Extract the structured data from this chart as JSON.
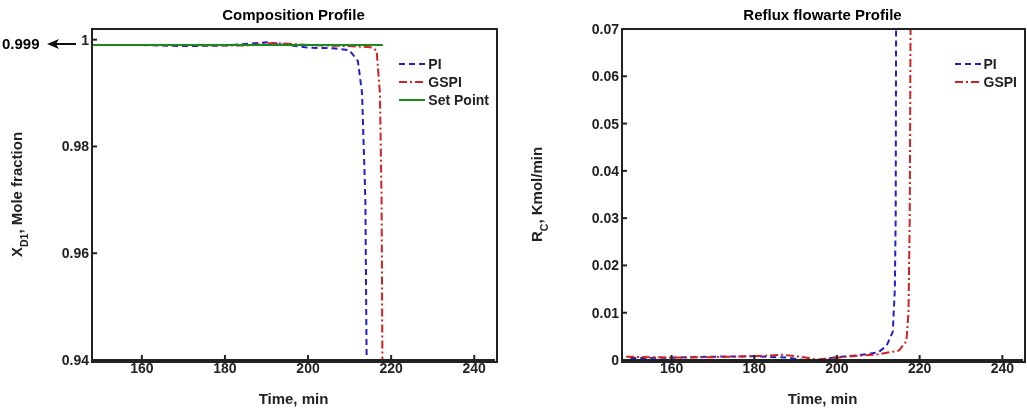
{
  "chart_data": [
    {
      "type": "line",
      "title": "Composition Profile",
      "xlabel": "Time, min",
      "ylabel": "X$_{D1}$, Mole fraction",
      "xlim": [
        148,
        245
      ],
      "xticks": [
        160,
        180,
        200,
        220,
        240
      ],
      "ylim": [
        0.94,
        1.002
      ],
      "yticks": [
        0.94,
        0.96,
        0.98,
        1
      ],
      "grid": false,
      "legend": "top right",
      "marker": "none",
      "annotations": [
        "0.999"
      ],
      "series": [
        {
          "name": "PI",
          "color": "#2020c8",
          "line_style": "dashed",
          "x": [
            148,
            160,
            170,
            180,
            190,
            195,
            200,
            206,
            210,
            212,
            213,
            213.8,
            214.1
          ],
          "values": [
            0.999,
            0.999,
            0.9988,
            0.9989,
            0.9995,
            0.999,
            0.9985,
            0.9984,
            0.998,
            0.996,
            0.99,
            0.97,
            0.94
          ]
        },
        {
          "name": "GSPI",
          "color": "#d42020",
          "line_style": "dashdot",
          "x": [
            148,
            170,
            185,
            192,
            200,
            210,
            215,
            216.5,
            217.3,
            217.7,
            217.9
          ],
          "values": [
            0.999,
            0.999,
            0.9989,
            0.9994,
            0.999,
            0.9988,
            0.9986,
            0.998,
            0.99,
            0.97,
            0.94
          ]
        },
        {
          "name": "Set Point",
          "color": "#1a8a1a",
          "line_style": "solid",
          "x": [
            148,
            218
          ],
          "values": [
            0.999,
            0.999
          ]
        }
      ]
    },
    {
      "type": "line",
      "title": "Reflux flowarte Profile",
      "xlabel": "Time, min",
      "ylabel": "R$_{C}$, Kmol/min",
      "xlim": [
        148,
        245
      ],
      "xticks": [
        160,
        180,
        200,
        220,
        240
      ],
      "ylim": [
        0,
        0.07
      ],
      "yticks": [
        0,
        0.01,
        0.02,
        0.03,
        0.04,
        0.05,
        0.06,
        0.07
      ],
      "grid": false,
      "legend": "top right",
      "marker": "none",
      "series": [
        {
          "name": "PI",
          "color": "#2020c8",
          "line_style": "dashed",
          "x": [
            150,
            160,
            170,
            180,
            188,
            192,
            195,
            200,
            205,
            210,
            212,
            213.5,
            214,
            214.2,
            214.3
          ],
          "values": [
            0.0004,
            0.0005,
            0.0007,
            0.0008,
            0.0005,
            0,
            0,
            0.0006,
            0.001,
            0.0016,
            0.003,
            0.006,
            0.015,
            0.03,
            0.07
          ]
        },
        {
          "name": "GSPI",
          "color": "#d42020",
          "line_style": "dashdot",
          "x": [
            149,
            160,
            170,
            180,
            187,
            192,
            195,
            200,
            205,
            210,
            215,
            216.8,
            217.3,
            217.6,
            217.8
          ],
          "values": [
            0.0007,
            0.0005,
            0.0006,
            0.0008,
            0.0011,
            0.0006,
            0.0001,
            0.0005,
            0.0009,
            0.0012,
            0.002,
            0.004,
            0.01,
            0.03,
            0.07
          ]
        }
      ]
    }
  ]
}
